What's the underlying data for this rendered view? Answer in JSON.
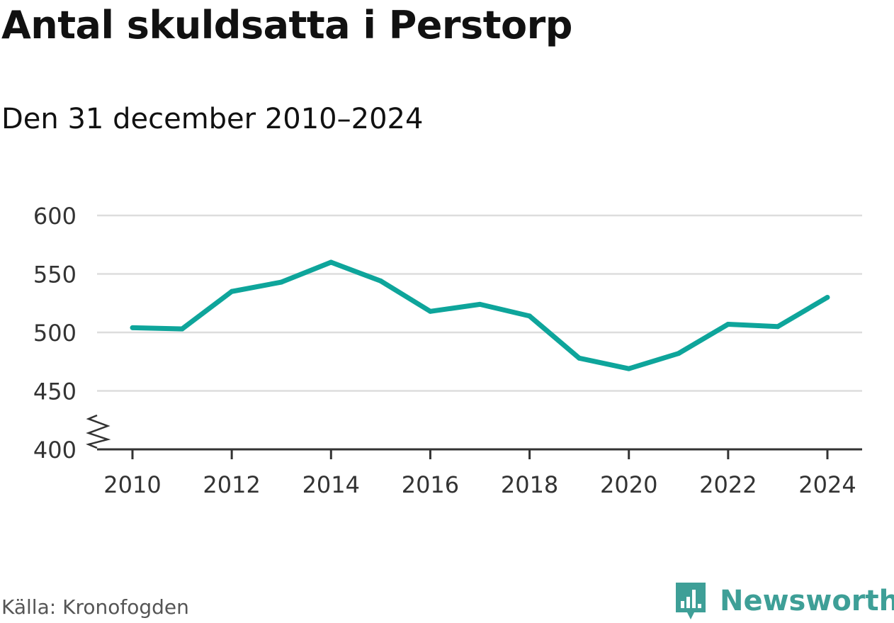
{
  "title": "Antal skuldsatta i Perstorp",
  "subtitle": "Den 31 december 2010–2024",
  "source": "Källa: Kronofogden",
  "brand": {
    "name": "Newsworthy",
    "icon": "newsworthy-logo-icon",
    "color": "#3e9f97"
  },
  "colors": {
    "line": "#0ea59b",
    "grid": "#dddddd",
    "axis": "#333333"
  },
  "chart_data": {
    "type": "line",
    "x": [
      2010,
      2011,
      2012,
      2013,
      2014,
      2015,
      2016,
      2017,
      2018,
      2019,
      2020,
      2021,
      2022,
      2023,
      2024
    ],
    "series": [
      {
        "values": [
          504,
          503,
          535,
          543,
          560,
          544,
          518,
          524,
          514,
          478,
          469,
          482,
          507,
          505,
          530
        ]
      }
    ],
    "xticks": [
      "2010",
      "2012",
      "2014",
      "2016",
      "2018",
      "2020",
      "2022",
      "2024"
    ],
    "yticks": [
      "400",
      "450",
      "500",
      "550",
      "600"
    ],
    "ylim": [
      400,
      600
    ],
    "xlim": [
      2010,
      2024
    ],
    "axis_break": true,
    "grid": true,
    "xlabel": "",
    "ylabel": ""
  }
}
